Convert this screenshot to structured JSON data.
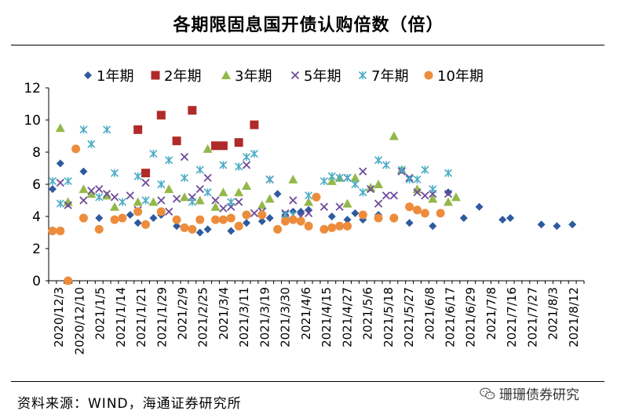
{
  "chart_data": {
    "type": "scatter",
    "title": "各期限固息国开债认购倍数（倍）",
    "xlabel": "",
    "ylabel": "",
    "ylim": [
      0,
      12
    ],
    "yticks": [
      0,
      2,
      4,
      6,
      8,
      10,
      12
    ],
    "legend_position": "top",
    "grid": false,
    "categories": [
      "2020/12/3",
      "2020/12/10",
      "2021/1/5",
      "2021/1/14",
      "2021/1/21",
      "2021/1/29",
      "2021/2/9",
      "2021/2/25",
      "2021/3/4",
      "2021/3/11",
      "2021/3/19",
      "2021/3/30",
      "2021/4/6",
      "2021/4/15",
      "2021/4/27",
      "2021/5/6",
      "2021/5/18",
      "2021/5/27",
      "2021/6/8",
      "2021/6/17",
      "2021/6/29",
      "2021/7/8",
      "2021/7/16",
      "2021/7/27",
      "2021/8/3",
      "2021/8/12"
    ],
    "series": [
      {
        "name": "1年期",
        "color": "#2e5a9e",
        "marker": "diamond",
        "points": [
          [
            0,
            5.7
          ],
          [
            1,
            7.3
          ],
          [
            2,
            4.8
          ],
          [
            4,
            6.8
          ],
          [
            6,
            3.9
          ],
          [
            10,
            4.1
          ],
          [
            11,
            3.6
          ],
          [
            13,
            3.9
          ],
          [
            14,
            4.1
          ],
          [
            16,
            3.4
          ],
          [
            19,
            3.0
          ],
          [
            20,
            3.2
          ],
          [
            23,
            3.1
          ],
          [
            25,
            3.6
          ],
          [
            27,
            3.7
          ],
          [
            28,
            3.9
          ],
          [
            29,
            5.4
          ],
          [
            30,
            4.1
          ],
          [
            31,
            4.3
          ],
          [
            32,
            4.3
          ],
          [
            33,
            4.4
          ],
          [
            36,
            4.0
          ],
          [
            38,
            3.8
          ],
          [
            39,
            4.2
          ],
          [
            40,
            3.8
          ],
          [
            42,
            4.1
          ],
          [
            46,
            3.6
          ],
          [
            49,
            3.4
          ],
          [
            51,
            5.5
          ],
          [
            53,
            3.9
          ],
          [
            55,
            4.6
          ],
          [
            58,
            3.8
          ],
          [
            59,
            3.9
          ],
          [
            63,
            3.5
          ],
          [
            65,
            3.4
          ],
          [
            67,
            3.5
          ]
        ]
      },
      {
        "name": "2年期",
        "color": "#b02a2a",
        "marker": "square",
        "points": [
          [
            11,
            9.4
          ],
          [
            12,
            6.7
          ],
          [
            14,
            10.3
          ],
          [
            16,
            8.7
          ],
          [
            18,
            10.6
          ],
          [
            21,
            8.4
          ],
          [
            22,
            8.4
          ],
          [
            24,
            8.6
          ],
          [
            26,
            9.7
          ]
        ]
      },
      {
        "name": "3年期",
        "color": "#93b84a",
        "marker": "triangle",
        "points": [
          [
            1,
            9.5
          ],
          [
            2,
            4.9
          ],
          [
            4,
            5.7
          ],
          [
            5,
            5.4
          ],
          [
            7,
            5.3
          ],
          [
            8,
            4.6
          ],
          [
            11,
            4.9
          ],
          [
            13,
            4.9
          ],
          [
            15,
            5.7
          ],
          [
            17,
            5.2
          ],
          [
            19,
            5.0
          ],
          [
            20,
            8.2
          ],
          [
            21,
            4.6
          ],
          [
            22,
            5.5
          ],
          [
            24,
            5.5
          ],
          [
            25,
            5.9
          ],
          [
            27,
            4.7
          ],
          [
            28,
            5.1
          ],
          [
            31,
            6.3
          ],
          [
            33,
            4.9
          ],
          [
            36,
            6.2
          ],
          [
            37,
            6.4
          ],
          [
            38,
            4.8
          ],
          [
            39,
            6.4
          ],
          [
            41,
            5.8
          ],
          [
            42,
            6.0
          ],
          [
            44,
            9.0
          ],
          [
            45,
            6.9
          ],
          [
            47,
            5.7
          ],
          [
            49,
            5.1
          ],
          [
            51,
            4.9
          ],
          [
            52,
            5.2
          ]
        ]
      },
      {
        "name": "5年期",
        "color": "#6e4a9a",
        "marker": "x",
        "points": [
          [
            1,
            6.1
          ],
          [
            2,
            4.7
          ],
          [
            4,
            5.0
          ],
          [
            5,
            5.6
          ],
          [
            6,
            5.7
          ],
          [
            7,
            5.4
          ],
          [
            8,
            5.2
          ],
          [
            10,
            5.3
          ],
          [
            11,
            4.4
          ],
          [
            12,
            6.1
          ],
          [
            14,
            5.0
          ],
          [
            15,
            4.3
          ],
          [
            16,
            5.1
          ],
          [
            17,
            7.7
          ],
          [
            18,
            5.2
          ],
          [
            19,
            5.7
          ],
          [
            20,
            6.4
          ],
          [
            21,
            5.0
          ],
          [
            22,
            4.5
          ],
          [
            23,
            4.6
          ],
          [
            24,
            4.9
          ],
          [
            25,
            7.2
          ],
          [
            26,
            4.2
          ],
          [
            27,
            4.3
          ],
          [
            28,
            6.3
          ],
          [
            30,
            4.2
          ],
          [
            31,
            5.0
          ],
          [
            32,
            4.0
          ],
          [
            33,
            4.2
          ],
          [
            35,
            4.6
          ],
          [
            37,
            4.6
          ],
          [
            38,
            6.4
          ],
          [
            40,
            6.8
          ],
          [
            41,
            5.7
          ],
          [
            42,
            4.8
          ],
          [
            43,
            5.3
          ],
          [
            44,
            5.3
          ],
          [
            45,
            6.8
          ],
          [
            46,
            6.4
          ],
          [
            47,
            5.5
          ],
          [
            48,
            5.3
          ],
          [
            49,
            5.4
          ],
          [
            51,
            5.4
          ]
        ]
      },
      {
        "name": "7年期",
        "color": "#4bacc6",
        "marker": "star",
        "points": [
          [
            0,
            6.2
          ],
          [
            1,
            4.8
          ],
          [
            2,
            6.2
          ],
          [
            4,
            9.4
          ],
          [
            5,
            8.5
          ],
          [
            6,
            5.2
          ],
          [
            7,
            9.4
          ],
          [
            8,
            6.7
          ],
          [
            9,
            4.9
          ],
          [
            11,
            6.5
          ],
          [
            12,
            5.0
          ],
          [
            13,
            7.9
          ],
          [
            14,
            6.0
          ],
          [
            15,
            7.5
          ],
          [
            17,
            6.4
          ],
          [
            18,
            4.9
          ],
          [
            19,
            6.9
          ],
          [
            20,
            5.5
          ],
          [
            22,
            7.2
          ],
          [
            23,
            4.9
          ],
          [
            24,
            7.1
          ],
          [
            25,
            7.7
          ],
          [
            26,
            7.9
          ],
          [
            28,
            6.3
          ],
          [
            30,
            4.1
          ],
          [
            31,
            4.1
          ],
          [
            33,
            5.3
          ],
          [
            35,
            6.2
          ],
          [
            36,
            6.5
          ],
          [
            37,
            6.4
          ],
          [
            38,
            6.4
          ],
          [
            39,
            6.0
          ],
          [
            40,
            5.5
          ],
          [
            42,
            7.5
          ],
          [
            43,
            7.2
          ],
          [
            45,
            6.9
          ],
          [
            46,
            6.3
          ],
          [
            47,
            6.3
          ],
          [
            48,
            6.9
          ],
          [
            49,
            5.7
          ],
          [
            51,
            6.7
          ]
        ]
      },
      {
        "name": "10年期",
        "color": "#ed8c3c",
        "marker": "circle",
        "points": [
          [
            0,
            3.1
          ],
          [
            1,
            3.1
          ],
          [
            2,
            0.0
          ],
          [
            3,
            8.2
          ],
          [
            4,
            3.9
          ],
          [
            6,
            3.2
          ],
          [
            8,
            3.8
          ],
          [
            9,
            3.9
          ],
          [
            11,
            4.3
          ],
          [
            12,
            3.5
          ],
          [
            14,
            4.3
          ],
          [
            16,
            3.8
          ],
          [
            17,
            3.3
          ],
          [
            18,
            3.2
          ],
          [
            19,
            3.8
          ],
          [
            21,
            3.8
          ],
          [
            22,
            3.8
          ],
          [
            23,
            3.9
          ],
          [
            24,
            3.4
          ],
          [
            25,
            4.1
          ],
          [
            27,
            4.1
          ],
          [
            29,
            3.2
          ],
          [
            30,
            3.7
          ],
          [
            31,
            3.8
          ],
          [
            32,
            3.7
          ],
          [
            33,
            3.4
          ],
          [
            34,
            5.2
          ],
          [
            35,
            3.2
          ],
          [
            36,
            3.3
          ],
          [
            37,
            3.4
          ],
          [
            38,
            3.4
          ],
          [
            40,
            4.1
          ],
          [
            42,
            3.9
          ],
          [
            44,
            3.9
          ],
          [
            46,
            4.6
          ],
          [
            47,
            4.4
          ],
          [
            48,
            4.2
          ],
          [
            50,
            4.2
          ]
        ]
      }
    ]
  },
  "source": "资料来源：WIND，海通证券研究所",
  "brand": "珊珊债券研究",
  "brand_icon": "wechat-icon"
}
